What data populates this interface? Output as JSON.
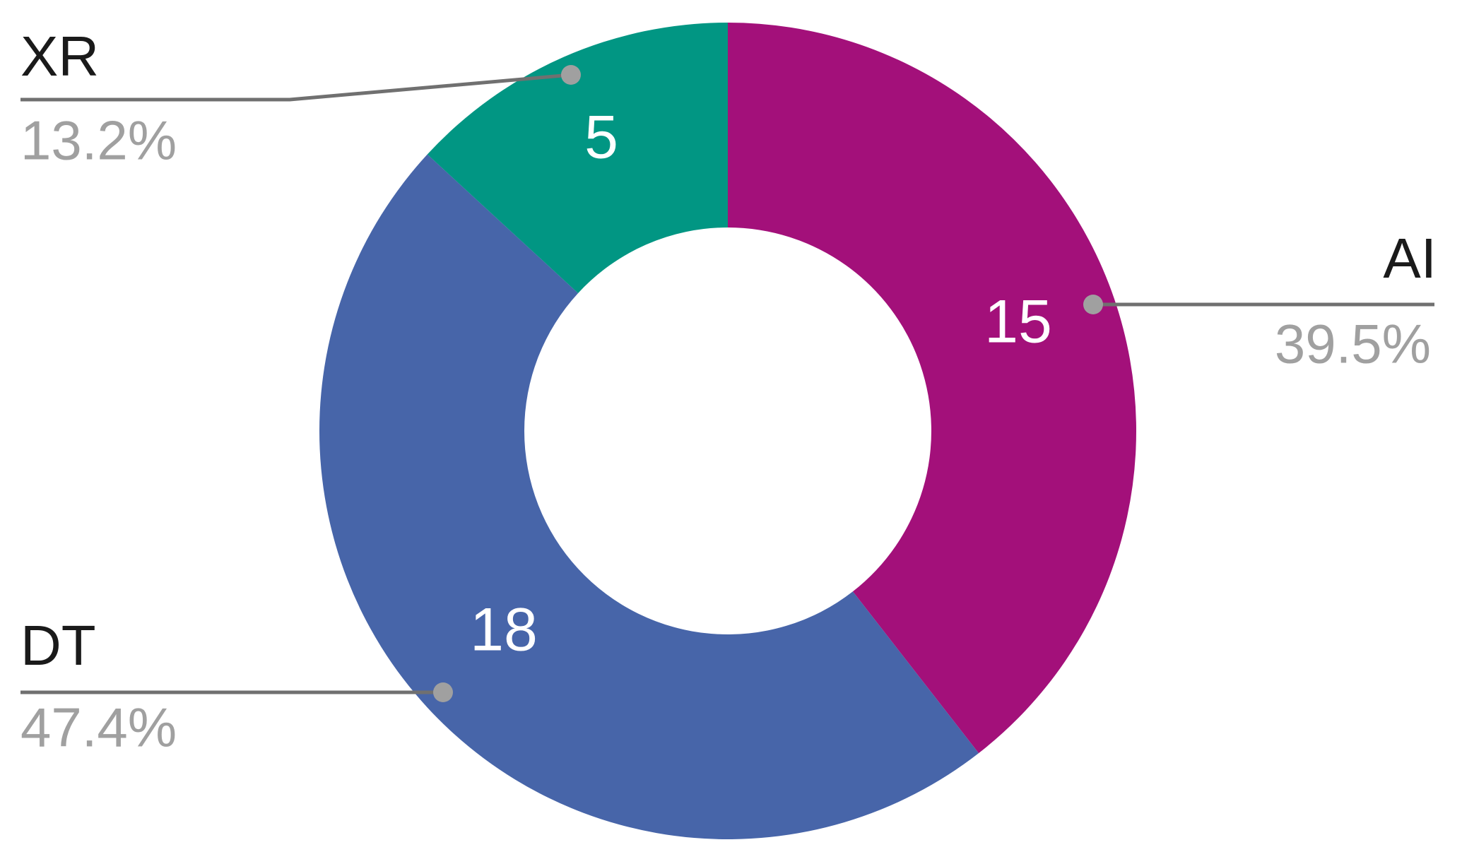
{
  "chart_data": {
    "type": "donut",
    "categories": [
      "AI",
      "DT",
      "XR"
    ],
    "values": [
      15,
      18,
      5
    ],
    "percent_labels": [
      "39.5%",
      "47.4%",
      "13.2%"
    ],
    "colors": [
      "#a3107a",
      "#4765a9",
      "#019683"
    ]
  }
}
